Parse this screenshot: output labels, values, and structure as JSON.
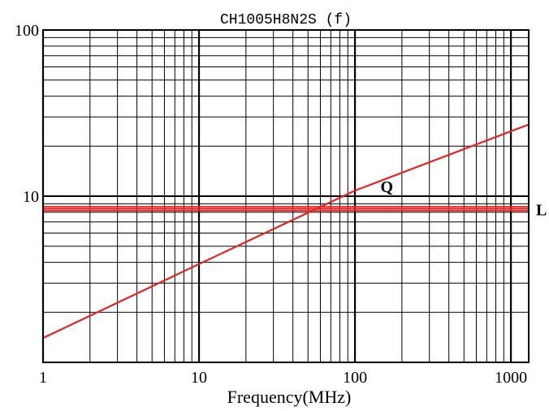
{
  "chart_data": {
    "type": "line",
    "title": "CH1005H8N2S (f)",
    "xlabel": "Frequency(MHz)",
    "ylabel": "",
    "x_scale": "log",
    "y_scale": "log",
    "xlim": [
      1,
      1300
    ],
    "ylim": [
      1,
      100
    ],
    "x_ticks": [
      1,
      10,
      100,
      1000
    ],
    "x_tick_labels": [
      "1",
      "10",
      "100",
      "1000"
    ],
    "y_ticks": [
      10,
      100
    ],
    "y_tick_labels": [
      "10",
      "100"
    ],
    "grid": true,
    "series": [
      {
        "name": "Q",
        "color": "#e8231f",
        "points": [
          [
            1,
            1.4
          ],
          [
            10,
            3.9
          ],
          [
            100,
            10.8
          ],
          [
            1300,
            27
          ]
        ]
      },
      {
        "name": "L",
        "color": "#e8231f",
        "points": [
          [
            1,
            8.4
          ],
          [
            1300,
            8.4
          ]
        ]
      }
    ]
  }
}
